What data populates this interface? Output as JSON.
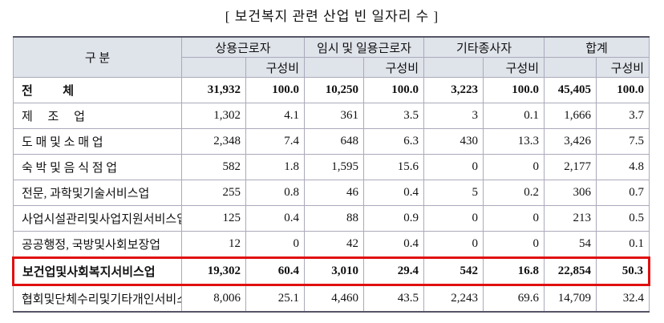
{
  "title": "[ 보건복지 관련 산업 빈 일자리 수 ]",
  "header": {
    "label": "구 분",
    "groups": [
      "상용근로자",
      "임시 및 일용근로자",
      "기타종사자",
      "합계"
    ],
    "sub": "구성비"
  },
  "table": {
    "rows": [
      [
        "전          체",
        "31,932",
        "100.0",
        "10,250",
        "100.0",
        "3,223",
        "100.0",
        "45,405",
        "100.0"
      ],
      [
        "제     조     업",
        "1,302",
        "4.1",
        "361",
        "3.5",
        "3",
        "0.1",
        "1,666",
        "3.7"
      ],
      [
        "도 매 및 소 매 업",
        "2,348",
        "7.4",
        "648",
        "6.3",
        "430",
        "13.3",
        "3,426",
        "7.5"
      ],
      [
        "숙 박 및 음 식 점 업",
        "582",
        "1.8",
        "1,595",
        "15.6",
        "0",
        "0",
        "2,177",
        "4.8"
      ],
      [
        "전문, 과학및기술서비스업",
        "255",
        "0.8",
        "46",
        "0.4",
        "5",
        "0.2",
        "306",
        "0.7"
      ],
      [
        "사업시설관리및사업지원서비스업",
        "125",
        "0.4",
        "88",
        "0.9",
        "0",
        "0",
        "213",
        "0.5"
      ],
      [
        "공공행정, 국방및사회보장업",
        "12",
        "0",
        "42",
        "0.4",
        "0",
        "0",
        "54",
        "0.1"
      ],
      [
        "보건업및사회복지서비스업",
        "19,302",
        "60.4",
        "3,010",
        "29.4",
        "542",
        "16.8",
        "22,854",
        "50.3"
      ],
      [
        "협회및단체수리및기타개인서비스업",
        "8,006",
        "25.1",
        "4,460",
        "43.5",
        "2,243",
        "69.6",
        "14,709",
        "32.4"
      ]
    ]
  }
}
